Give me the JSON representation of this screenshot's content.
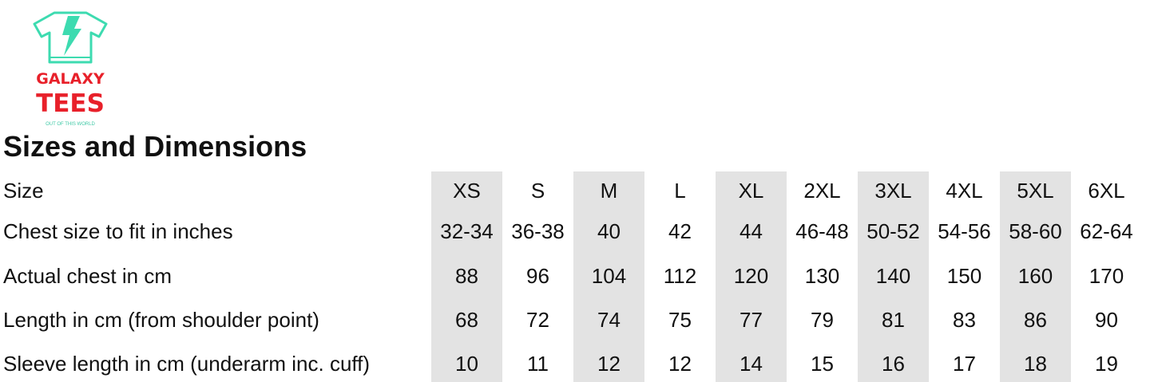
{
  "logo": {
    "line1": "GALAXY",
    "line2": "TEES",
    "tagline": "OUT OF THIS WORLD",
    "colors": {
      "shirt": "#3ddbb0",
      "text": "#e8202a"
    }
  },
  "title": "Sizes and Dimensions",
  "table": {
    "header_label": "Size",
    "sizes": [
      "XS",
      "S",
      "M",
      "L",
      "XL",
      "2XL",
      "3XL",
      "4XL",
      "5XL",
      "6XL"
    ],
    "rows": [
      {
        "label": "Chest size to fit in inches",
        "values": [
          "32-34",
          "36-38",
          "40",
          "42",
          "44",
          "46-48",
          "50-52",
          "54-56",
          "58-60",
          "62-64"
        ]
      },
      {
        "label": "Actual chest in cm",
        "values": [
          "88",
          "96",
          "104",
          "112",
          "120",
          "130",
          "140",
          "150",
          "160",
          "170"
        ]
      },
      {
        "label": "Length in cm (from shoulder point)",
        "values": [
          "68",
          "72",
          "74",
          "75",
          "77",
          "79",
          "81",
          "83",
          "86",
          "90"
        ]
      },
      {
        "label": "Sleeve length in cm (underarm inc. cuff)",
        "values": [
          "10",
          "11",
          "12",
          "12",
          "14",
          "15",
          "16",
          "17",
          "18",
          "19"
        ]
      }
    ],
    "shade_color": "#e3e3e3"
  }
}
